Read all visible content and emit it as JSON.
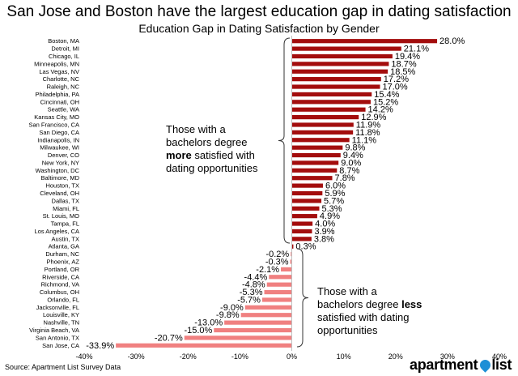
{
  "chart_data": {
    "type": "bar",
    "orientation": "horizontal",
    "title": "San Jose and Boston have the largest education gap in dating satisfaction",
    "subtitle": "Education Gap in Dating Satisfaction by Gender",
    "categories": [
      "Boston, MA",
      "Detroit, MI",
      "Chicago, IL",
      "Minneapolis, MN",
      "Las Vegas, NV",
      "Charlotte, NC",
      "Raleigh, NC",
      "Philadelphia, PA",
      "Cincinnati, OH",
      "Seattle, WA",
      "Kansas City, MO",
      "San Francisco, CA",
      "San Diego, CA",
      "Indianapolis, IN",
      "Milwaukee, WI",
      "Denver, CO",
      "New York, NY",
      "Washington, DC",
      "Baltimore, MD",
      "Houston, TX",
      "Cleveland, OH",
      "Dallas, TX",
      "Miami, FL",
      "St. Louis, MO",
      "Tampa, FL",
      "Los Angeles, CA",
      "Austin, TX",
      "Atlanta, GA",
      "Durham, NC",
      "Phoenix, AZ",
      "Portland, OR",
      "Riverside, CA",
      "Richmond, VA",
      "Columbus, OH",
      "Orlando, FL",
      "Jacksonville, FL",
      "Louisville, KY",
      "Nashville, TN",
      "Virginia Beach, VA",
      "San Antonio, TX",
      "San Jose, CA"
    ],
    "values": [
      28.0,
      21.1,
      19.4,
      18.7,
      18.5,
      17.2,
      17.0,
      15.4,
      15.2,
      14.2,
      12.9,
      11.9,
      11.8,
      11.1,
      9.8,
      9.4,
      9.0,
      8.7,
      7.8,
      6.0,
      5.9,
      5.7,
      5.3,
      4.9,
      4.0,
      3.9,
      3.8,
      0.3,
      -0.2,
      -0.3,
      -2.1,
      -4.4,
      -4.8,
      -5.3,
      -5.7,
      -9.0,
      -9.8,
      -13.0,
      -15.0,
      -20.7,
      -33.9
    ],
    "value_labels": [
      "28.0%",
      "21.1%",
      "19.4%",
      "18.7%",
      "18.5%",
      "17.2%",
      "17.0%",
      "15.4%",
      "15.2%",
      "14.2%",
      "12.9%",
      "11.9%",
      "11.8%",
      "11.1%",
      "9.8%",
      "9.4%",
      "9.0%",
      "8.7%",
      "7.8%",
      "6.0%",
      "5.9%",
      "5.7%",
      "5.3%",
      "4.9%",
      "4.0%",
      "3.9%",
      "3.8%",
      "0.3%",
      "-0.2%",
      "-0.3%",
      "-2.1%",
      "-4.4%",
      "-4.8%",
      "-5.3%",
      "-5.7%",
      "-9.0%",
      "-9.8%",
      "-13.0%",
      "-15.0%",
      "-20.7%",
      "-33.9%"
    ],
    "xlim": [
      -40,
      40
    ],
    "x_ticks": [
      -40,
      -30,
      -20,
      -10,
      0,
      10,
      20,
      30,
      40
    ],
    "x_tick_labels": [
      "-40%",
      "-30%",
      "-20%",
      "-10%",
      "0%",
      "10%",
      "20%",
      "30%",
      "40%"
    ],
    "grid": false,
    "colors": {
      "positive": "#a30d0d",
      "negative": "#f08080"
    }
  },
  "annotations": {
    "top": {
      "line1": "Those with a",
      "line2": "bachelors degree",
      "bold": "more",
      "line3_rest": " satisfied with",
      "line4": "dating opportunities"
    },
    "bottom": {
      "line1": "Those with a",
      "line2_pre": "bachelors degree ",
      "bold": "less",
      "line3": "satisfied with dating",
      "line4": "opportunities"
    }
  },
  "source": "Source: Apartment List Survey Data",
  "logo": {
    "text_left": "apartment",
    "text_right": "list",
    "pin_color": "#1e8fd6"
  }
}
